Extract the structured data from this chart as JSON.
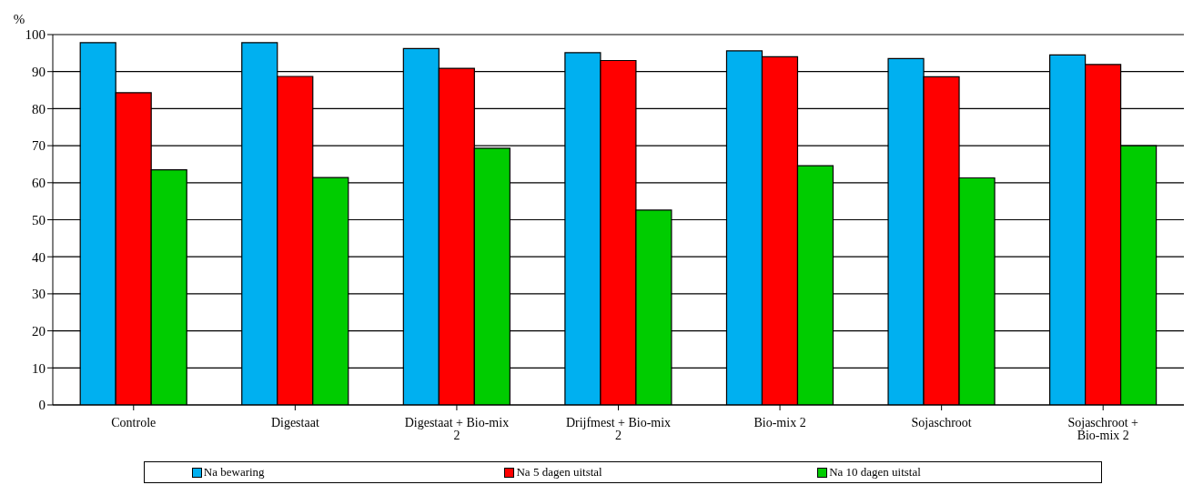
{
  "chart_data": {
    "type": "bar",
    "ylabel": "%",
    "categories": [
      "Controle",
      "Digestaat",
      "Digestaat + Bio-mix 2",
      "Drijfmest + Bio-mix 2",
      "Bio-mix 2",
      "Sojaschroot",
      "Sojaschroot + Bio-mix 2"
    ],
    "series": [
      {
        "name": "Na bewaring",
        "color": "#00b0f0",
        "values": [
          97.8,
          97.8,
          96.2,
          95.1,
          95.6,
          93.5,
          94.5
        ]
      },
      {
        "name": "Na 5 dagen uitstal",
        "color": "#ff0000",
        "values": [
          84.3,
          88.7,
          90.9,
          93,
          94,
          88.6,
          91.9
        ]
      },
      {
        "name": "Na 10 dagen uitstal",
        "color": "#00cc00",
        "values": [
          63.5,
          61.4,
          69.3,
          52.6,
          64.6,
          61.3,
          70
        ]
      }
    ],
    "ylim": [
      0,
      100
    ],
    "yticks": [
      0,
      10,
      20,
      30,
      40,
      50,
      60,
      70,
      80,
      90,
      100
    ],
    "grid": "y",
    "legend": "bottom"
  }
}
